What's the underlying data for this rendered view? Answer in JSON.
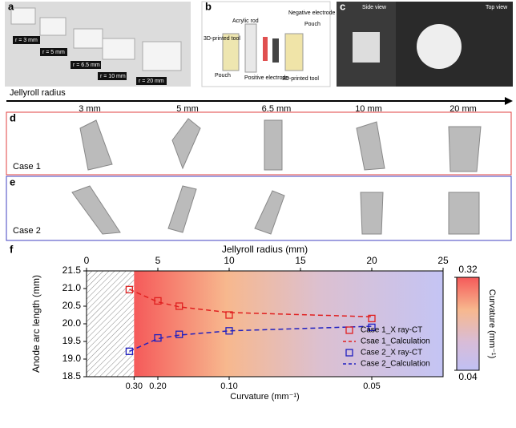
{
  "panels": {
    "a": {
      "letter": "a",
      "labels": [
        "r = 3 mm",
        "r = 5 mm",
        "r = 6.5 mm",
        "r = 10 mm",
        "r = 20 mm"
      ]
    },
    "b": {
      "letter": "b",
      "labels": [
        "Acrylic rod",
        "Negative electrode",
        "Pouch",
        "3D-printed tool",
        "Pouch",
        "Positive electrode",
        "3D-printed tool"
      ]
    },
    "c": {
      "letter": "c",
      "labels": [
        "Side view",
        "Top view"
      ]
    },
    "arrow": {
      "title": "Jellyroll radius",
      "labels": [
        "3 mm",
        "5 mm",
        "6.5 mm",
        "10 mm",
        "20 mm"
      ]
    },
    "d": {
      "letter": "d",
      "case": "Case 1"
    },
    "e": {
      "letter": "e",
      "case": "Case 2"
    },
    "f": {
      "letter": "f"
    }
  },
  "chart_data": {
    "type": "line",
    "xlabel": "Jellyroll radius (mm)",
    "ylabel": "Anode arc length (mm)",
    "x2label": "Curvature (mm⁻¹)",
    "xlim": [
      0,
      25
    ],
    "xticks": [
      0,
      5,
      10,
      15,
      20,
      25
    ],
    "ylim": [
      18.5,
      21.5
    ],
    "yticks": [
      18.5,
      {
        "value": 19,
        "label": "19.0"
      },
      19.5,
      {
        "value": 20,
        "label": "20.0"
      },
      20.5,
      {
        "value": 21,
        "label": "21.0"
      },
      21.5
    ],
    "x2scale": "reciprocal",
    "x2ticks": [
      {
        "value": 0.3,
        "label": "0.30"
      },
      {
        "value": 0.2,
        "label": "0.20"
      },
      {
        "value": 0.1,
        "label": "0.10"
      },
      0.05
    ],
    "colorbar": {
      "label": "Curvature (mm⁻¹)",
      "lim": [
        0.04,
        0.32
      ],
      "ticks": [
        0.32,
        0.04
      ]
    },
    "legend": "lower right",
    "series": [
      {
        "name": "Case 1_X ray-CT",
        "color": "#e02020",
        "style": "markers",
        "x": [
          3,
          5,
          6.5,
          10,
          20
        ],
        "values": [
          20.97,
          20.65,
          20.5,
          20.25,
          20.15
        ]
      },
      {
        "name": "Csae 1_Calculation",
        "color": "#e02020",
        "style": "dashed",
        "x": [
          3,
          5,
          6.5,
          10,
          20
        ],
        "values": [
          20.98,
          20.62,
          20.48,
          20.32,
          20.2
        ]
      },
      {
        "name": "Case 2_X ray-CT",
        "color": "#2020c0",
        "style": "markers",
        "x": [
          3,
          5,
          6.5,
          10,
          20
        ],
        "values": [
          19.22,
          19.6,
          19.7,
          19.8,
          19.9
        ]
      },
      {
        "name": "Case 2_Calculation",
        "color": "#2020c0",
        "style": "dashed",
        "x": [
          3,
          5,
          6.5,
          10,
          20
        ],
        "values": [
          19.22,
          19.58,
          19.68,
          19.8,
          19.93
        ]
      }
    ]
  }
}
